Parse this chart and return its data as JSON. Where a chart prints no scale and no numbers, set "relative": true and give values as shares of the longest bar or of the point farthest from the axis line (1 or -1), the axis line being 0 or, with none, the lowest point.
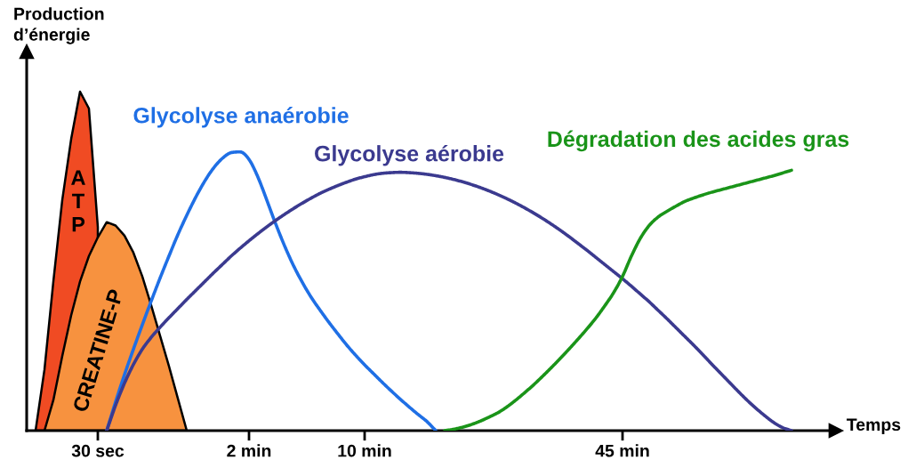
{
  "chart_data": {
    "type": "line",
    "relative": true,
    "xlabel": "Temps",
    "ylabel": "Production\nd’énergie",
    "categories": [
      null,
      null,
      null,
      null,
      null,
      null,
      null,
      null,
      "30 sec",
      null,
      null,
      null,
      null,
      null,
      null,
      null,
      null,
      null,
      null,
      null,
      null,
      null,
      null,
      null,
      null,
      "2 min",
      null,
      null,
      null,
      null,
      null,
      null,
      null,
      null,
      null,
      null,
      null,
      null,
      "10 min",
      null,
      null,
      null,
      null,
      null,
      null,
      null,
      null,
      null,
      null,
      null,
      null,
      null,
      null,
      null,
      null,
      null,
      null,
      null,
      null,
      null,
      null,
      null,
      null,
      null,
      null,
      null,
      null,
      "45 min",
      null,
      null,
      null,
      null,
      null,
      null,
      null,
      null,
      null,
      null,
      null,
      null,
      null,
      null,
      null,
      null,
      null,
      null,
      null,
      null,
      null,
      null,
      null,
      null
    ],
    "series": [
      {
        "name": "ATP",
        "type": "area",
        "color": "#f04b23",
        "values": [
          null,
          0,
          0.18,
          0.44,
          0.68,
          0.86,
          1.0,
          0.95,
          0.6,
          null,
          null,
          null,
          null,
          null,
          null,
          null,
          null,
          null,
          null,
          null,
          null,
          null,
          null,
          null,
          null,
          null,
          null,
          null,
          null,
          null,
          null,
          null,
          null,
          null,
          null,
          null,
          null,
          null,
          null,
          null,
          null,
          null,
          null,
          null,
          null,
          null,
          null,
          null,
          null,
          null,
          null,
          null,
          null,
          null,
          null,
          null,
          null,
          null,
          null,
          null,
          null,
          null,
          null,
          null,
          null,
          null,
          null,
          null,
          null,
          null,
          null,
          null,
          null,
          null,
          null,
          null,
          null,
          null,
          null,
          null,
          null,
          null,
          null,
          null,
          null,
          null,
          null,
          null,
          null,
          null,
          null,
          null
        ]
      },
      {
        "name": "CREATINE-P",
        "type": "area",
        "color": "#f7923f",
        "values": [
          null,
          null,
          0,
          0.09,
          0.22,
          0.34,
          0.44,
          0.515,
          0.57,
          0.615,
          0.605,
          0.575,
          0.525,
          0.455,
          0.37,
          0.28,
          0.19,
          0.095,
          0,
          null,
          null,
          null,
          null,
          null,
          null,
          null,
          null,
          null,
          null,
          null,
          null,
          null,
          null,
          null,
          null,
          null,
          null,
          null,
          null,
          null,
          null,
          null,
          null,
          null,
          null,
          null,
          null,
          null,
          null,
          null,
          null,
          null,
          null,
          null,
          null,
          null,
          null,
          null,
          null,
          null,
          null,
          null,
          null,
          null,
          null,
          null,
          null,
          null,
          null,
          null,
          null,
          null,
          null,
          null,
          null,
          null,
          null,
          null,
          null,
          null,
          null,
          null,
          null,
          null,
          null,
          null,
          null,
          null,
          null,
          null,
          null,
          null
        ]
      },
      {
        "name": "Glycolyse anaérobie",
        "color": "#1f6fe5",
        "values": [
          null,
          null,
          null,
          null,
          null,
          null,
          null,
          null,
          null,
          0,
          0.085,
          0.165,
          0.24,
          0.312,
          0.382,
          0.45,
          0.515,
          0.578,
          0.635,
          0.688,
          0.735,
          0.774,
          0.803,
          0.82,
          0.822,
          0.8,
          0.748,
          0.68,
          0.61,
          0.545,
          0.487,
          0.437,
          0.393,
          0.355,
          0.319,
          0.285,
          0.252,
          0.222,
          0.194,
          0.168,
          0.142,
          0.117,
          0.093,
          0.07,
          0.048,
          0.027,
          0,
          null,
          null,
          null,
          null,
          null,
          null,
          null,
          null,
          null,
          null,
          null,
          null,
          null,
          null,
          null,
          null,
          null,
          null,
          null,
          null,
          null,
          null,
          null,
          null,
          null,
          null,
          null,
          null,
          null,
          null,
          null,
          null,
          null,
          null,
          null,
          null,
          null,
          null,
          null,
          null,
          null,
          null,
          null,
          null,
          null
        ]
      },
      {
        "name": "Glycolyse aérobie",
        "color": "#3b3a8f",
        "values": [
          null,
          null,
          null,
          null,
          null,
          null,
          null,
          null,
          null,
          0,
          0.075,
          0.14,
          0.195,
          0.24,
          0.275,
          0.305,
          0.333,
          0.36,
          0.387,
          0.413,
          0.439,
          0.465,
          0.49,
          0.515,
          0.538,
          0.56,
          0.581,
          0.601,
          0.62,
          0.638,
          0.655,
          0.671,
          0.686,
          0.7,
          0.712,
          0.723,
          0.733,
          0.742,
          0.749,
          0.755,
          0.759,
          0.761,
          0.762,
          0.761,
          0.759,
          0.756,
          0.752,
          0.747,
          0.741,
          0.734,
          0.726,
          0.717,
          0.707,
          0.696,
          0.684,
          0.671,
          0.657,
          0.642,
          0.626,
          0.609,
          0.591,
          0.572,
          0.552,
          0.532,
          0.511,
          0.49,
          0.469,
          0.448,
          0.426,
          0.403,
          0.38,
          0.355,
          0.33,
          0.304,
          0.278,
          0.252,
          0.225,
          0.197,
          0.17,
          0.143,
          0.116,
          0.09,
          0.066,
          0.044,
          0.024,
          0.009,
          0,
          null,
          null,
          null,
          null,
          null
        ]
      },
      {
        "name": "Dégradation des acides gras",
        "color": "#1a9419",
        "values": [
          null,
          null,
          null,
          null,
          null,
          null,
          null,
          null,
          null,
          null,
          null,
          null,
          null,
          null,
          null,
          null,
          null,
          null,
          null,
          null,
          null,
          null,
          null,
          null,
          null,
          null,
          null,
          null,
          null,
          null,
          null,
          null,
          null,
          null,
          null,
          null,
          null,
          null,
          null,
          null,
          null,
          null,
          null,
          null,
          null,
          null,
          null,
          0,
          0.004,
          0.01,
          0.018,
          0.028,
          0.04,
          0.053,
          0.07,
          0.09,
          0.112,
          0.135,
          0.16,
          0.186,
          0.213,
          0.241,
          0.27,
          0.3,
          0.332,
          0.368,
          0.407,
          0.455,
          0.515,
          0.567,
          0.605,
          0.63,
          0.647,
          0.662,
          0.676,
          0.686,
          0.695,
          0.703,
          0.71,
          0.717,
          0.724,
          0.731,
          0.738,
          0.745,
          0.752,
          0.76,
          0.768,
          null,
          null,
          null,
          null,
          null
        ]
      }
    ]
  }
}
